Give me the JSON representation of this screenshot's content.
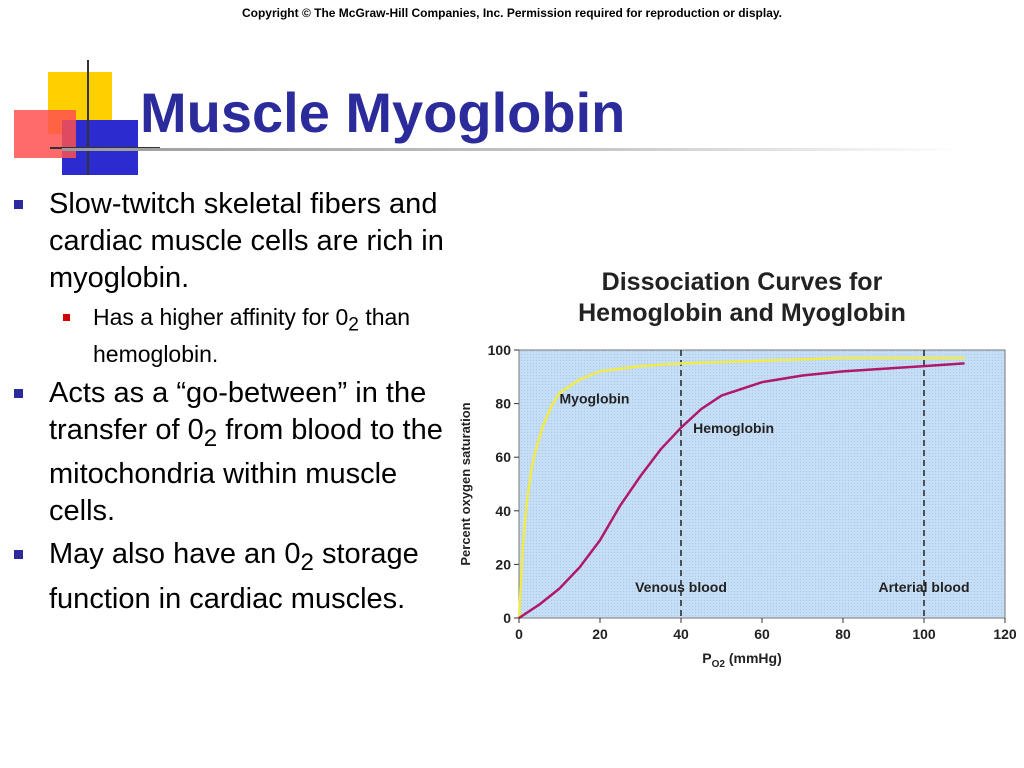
{
  "copyright": "Copyright © The McGraw-Hill Companies, Inc. Permission required for reproduction or display.",
  "slide_title": "Muscle Myoglobin",
  "bullets": [
    {
      "text": "Slow-twitch skeletal fibers and cardiac muscle cells are rich in myoglobin.",
      "sub": {
        "text_before": "Has a higher affinity for 0",
        "subscript": "2",
        "text_after": " than hemoglobin."
      }
    },
    {
      "text_before": "Acts as a “go-between” in the transfer of 0",
      "subscript": "2",
      "text_after": " from blood to the mitochondria within muscle cells."
    },
    {
      "text_before": "May also have an 0",
      "subscript": "2",
      "text_after": " storage function in cardiac muscles."
    }
  ],
  "colors": {
    "title": "#2b2b9c",
    "bullet_primary": "#2b2b9c",
    "bullet_secondary": "#d20000",
    "plot_background": "#c6def5",
    "myoglobin_curve": "#f0ea4a",
    "hemoglobin_curve": "#b0186a"
  },
  "chart_data": {
    "type": "line",
    "title_line1": "Dissociation Curves for",
    "title_line2": "Hemoglobin and Myoglobin",
    "xlabel_main": "P",
    "xlabel_sub": "O2",
    "xlabel_unit": " (mmHg)",
    "ylabel": "Percent oxygen saturation",
    "xlim": [
      0,
      120
    ],
    "ylim": [
      0,
      100
    ],
    "x_ticks": [
      0,
      20,
      40,
      60,
      80,
      100,
      120
    ],
    "y_ticks": [
      0,
      20,
      40,
      60,
      80,
      100
    ],
    "grid": false,
    "series": [
      {
        "name": "Myoglobin",
        "x": [
          0,
          1,
          2,
          3,
          4,
          6,
          8,
          10,
          15,
          20,
          30,
          40,
          60,
          80,
          100,
          110
        ],
        "y": [
          0,
          28,
          44,
          55,
          62,
          72,
          79,
          84,
          89,
          92,
          94,
          95,
          96,
          97,
          97,
          97
        ]
      },
      {
        "name": "Hemoglobin",
        "x": [
          0,
          5,
          10,
          15,
          20,
          25,
          30,
          35,
          40,
          45,
          50,
          60,
          70,
          80,
          90,
          100,
          110
        ],
        "y": [
          0,
          5,
          11,
          19,
          29,
          42,
          53,
          63,
          71,
          78,
          83,
          88,
          90.5,
          92,
          93,
          94,
          95
        ]
      }
    ],
    "reference_lines": [
      {
        "x": 40,
        "label": "Venous blood"
      },
      {
        "x": 100,
        "label": "Arterial blood"
      }
    ]
  }
}
